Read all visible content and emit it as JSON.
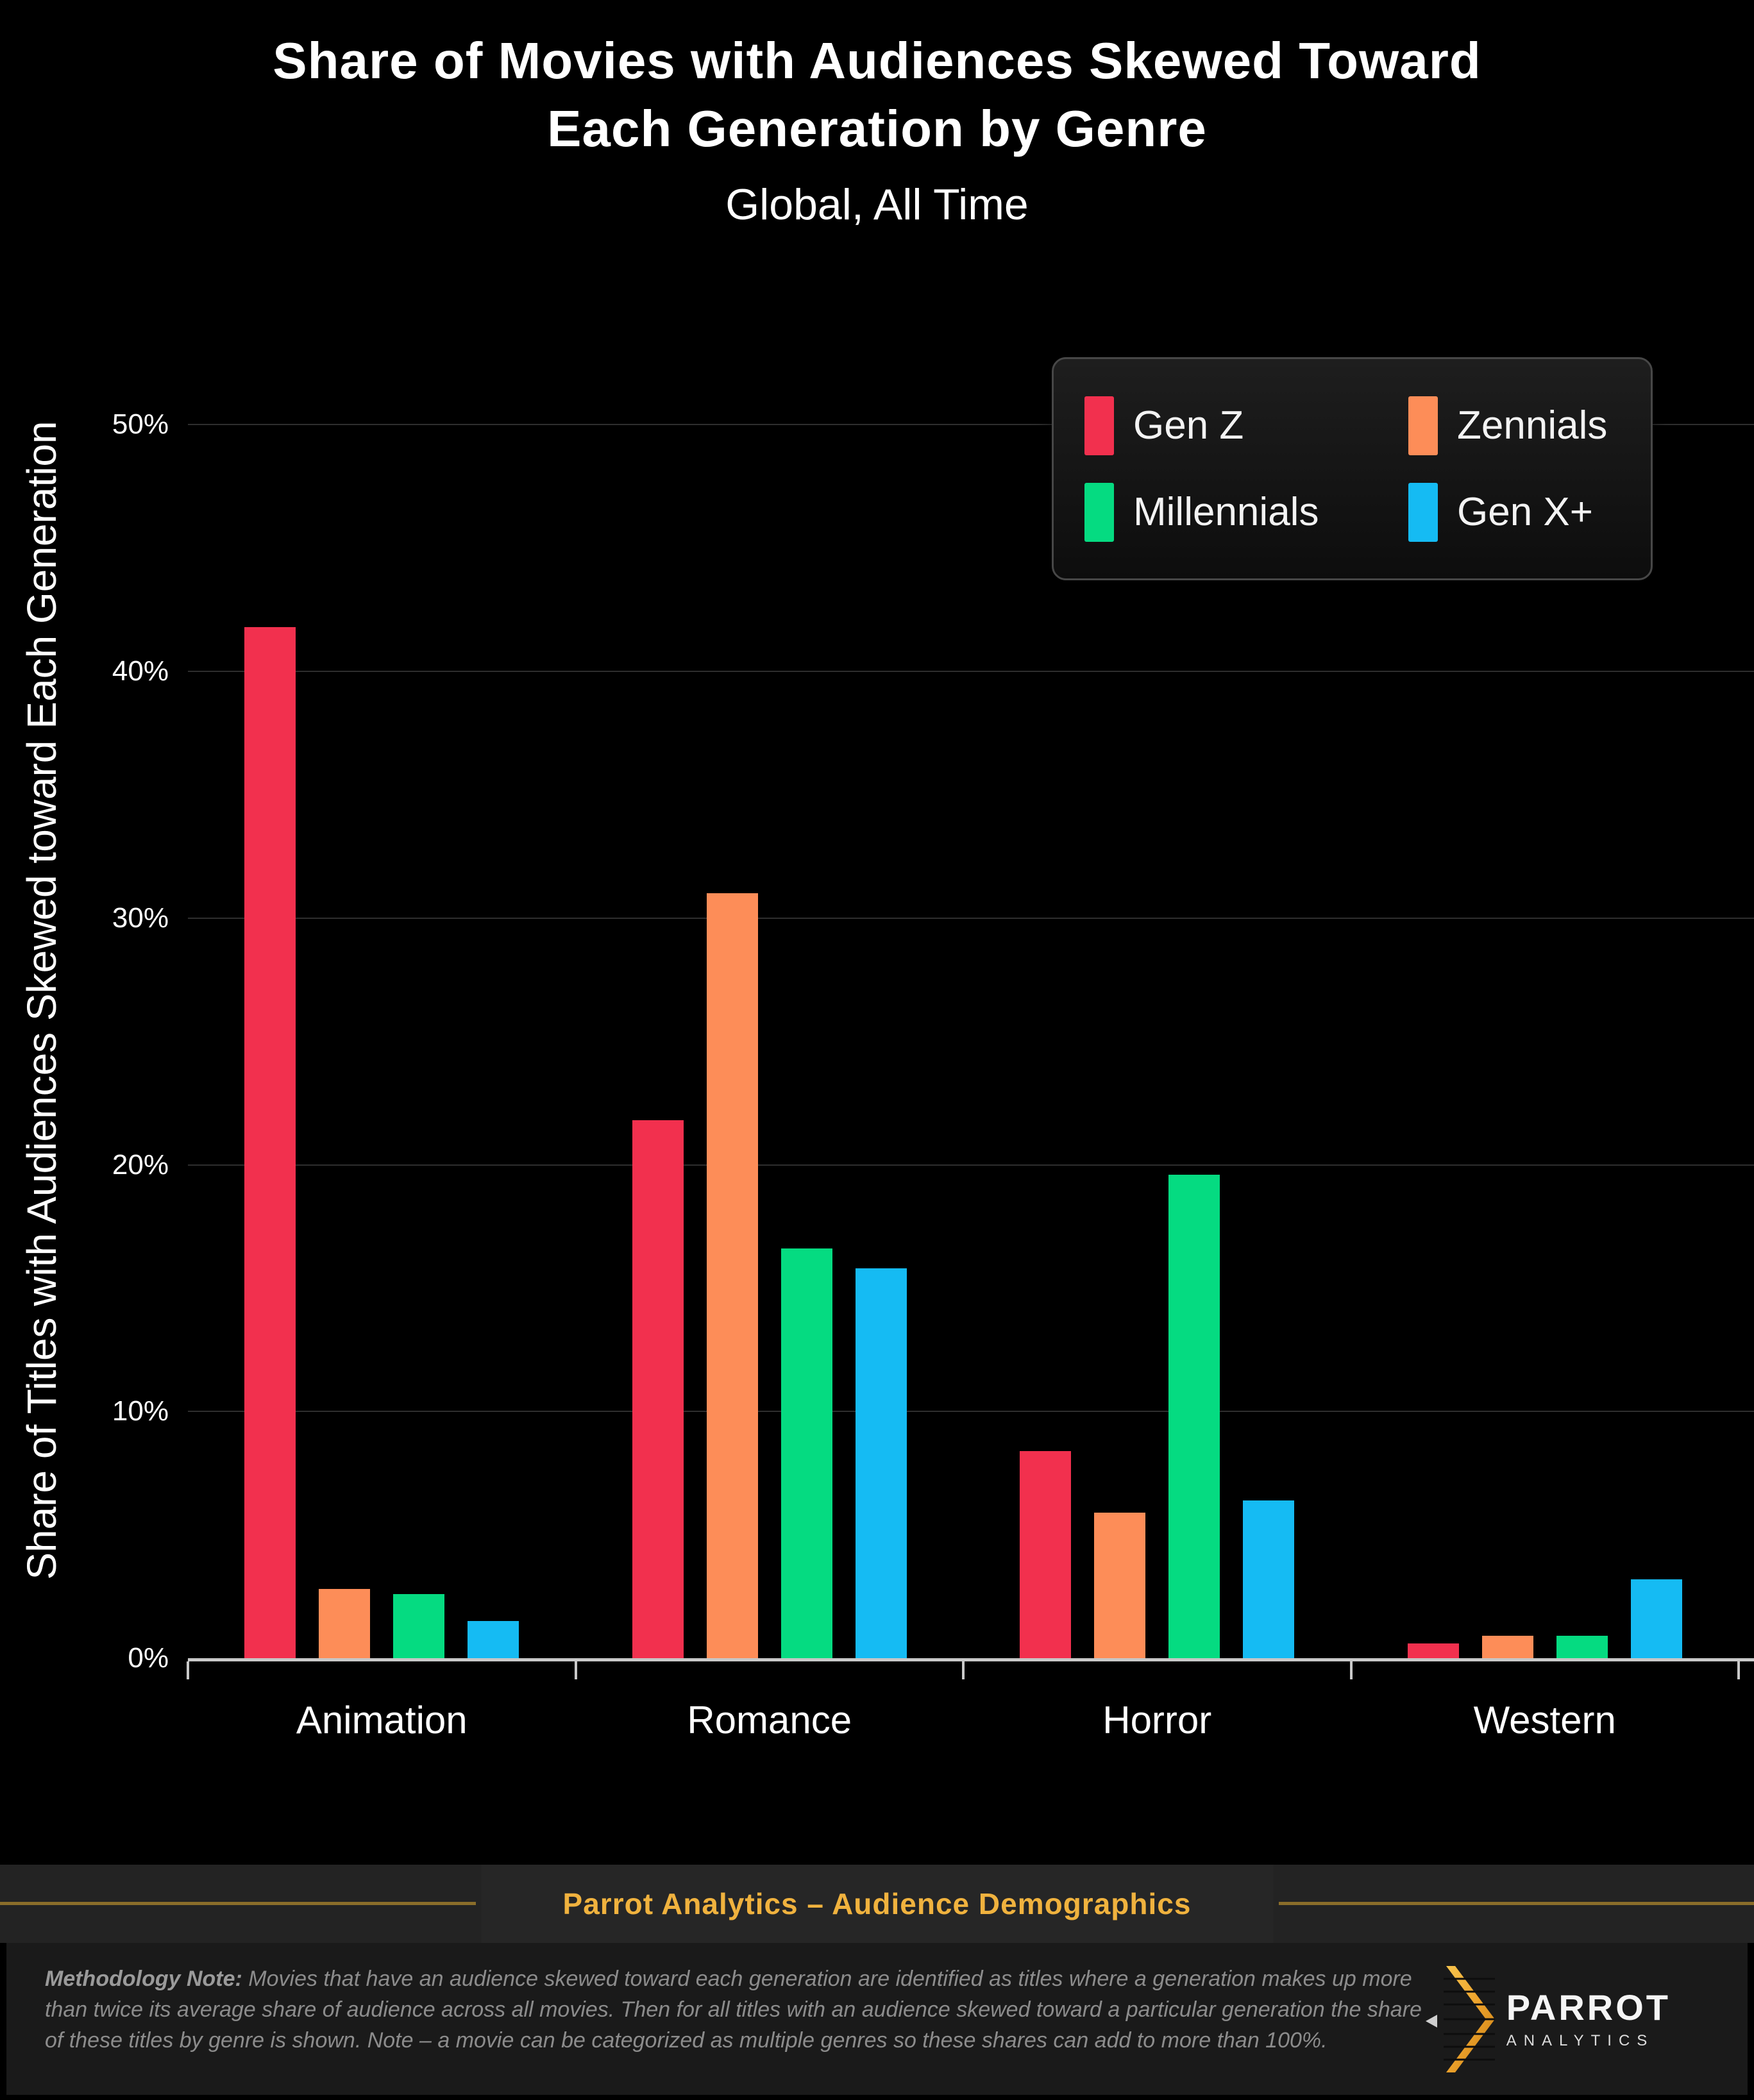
{
  "title": {
    "line1": "Share of Movies with Audiences Skewed Toward",
    "line2": "Each Generation by Genre",
    "subtitle": "Global, All Time"
  },
  "chart_data": {
    "type": "bar",
    "title": "Share of Movies with Audiences Skewed Toward Each Generation by Genre",
    "subtitle": "Global, All Time",
    "xlabel": "",
    "ylabel": "Share of Titles with Audiences Skewed toward Each Generation",
    "categories": [
      "Animation",
      "Romance",
      "Horror",
      "Western"
    ],
    "series": [
      {
        "name": "Gen Z",
        "color": "#F2304E",
        "values": [
          41.8,
          21.8,
          8.4,
          0.6
        ]
      },
      {
        "name": "Zennials",
        "color": "#FD8D58",
        "values": [
          2.8,
          31.0,
          5.9,
          0.9
        ]
      },
      {
        "name": "Millennials",
        "color": "#05DB81",
        "values": [
          2.6,
          16.6,
          19.6,
          0.9
        ]
      },
      {
        "name": "Gen X+",
        "color": "#15BBF3",
        "values": [
          1.5,
          15.8,
          6.4,
          3.2
        ]
      }
    ],
    "yticks": [
      0,
      10,
      20,
      30,
      40,
      50
    ],
    "ytick_suffix": "%",
    "ylim": [
      0,
      52.4
    ],
    "grid": true,
    "legend_position": "top-right",
    "background": "#000000"
  },
  "footer": {
    "banner": "Parrot Analytics – Audience Demographics",
    "banner_color": "#F0B23E"
  },
  "methodology": {
    "label": "Methodology Note:",
    "text": " Movies that have an audience skewed toward each generation are identified as titles where a generation makes up more than twice its average share of audience across all movies.  Then for all titles with an audience skewed toward a particular generation the share of these titles by genre is shown.  Note – a movie can be categorized as multiple genres so these shares can add to more than 100%."
  },
  "logo": {
    "brand": "PARROT",
    "sub": "ANALYTICS"
  }
}
